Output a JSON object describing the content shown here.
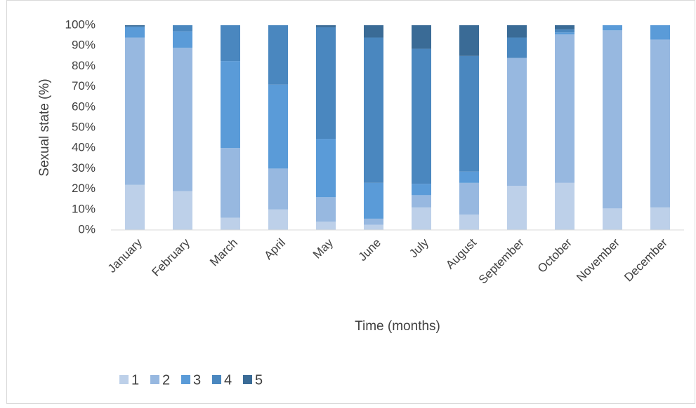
{
  "chart_data": {
    "type": "stacked_bar",
    "x_label": "Time (months)",
    "y_label": "Sexual state (%)",
    "categories": [
      "January",
      "February",
      "March",
      "April",
      "May",
      "June",
      "July",
      "August",
      "September",
      "October",
      "November",
      "December"
    ],
    "series": [
      {
        "name": "1",
        "color": "#bdd0e9",
        "values": [
          22,
          19,
          6,
          10,
          4,
          2.5,
          11,
          7.5,
          21.5,
          23,
          10.5,
          11
        ]
      },
      {
        "name": "2",
        "color": "#97b8e0",
        "values": [
          72,
          70,
          34,
          20,
          12,
          3,
          6,
          15.5,
          62.5,
          72.5,
          87,
          82
        ]
      },
      {
        "name": "3",
        "color": "#5a9bd8",
        "values": [
          5,
          8,
          42.5,
          41,
          28.5,
          17.5,
          5.5,
          5.5,
          0,
          1,
          2.5,
          7
        ]
      },
      {
        "name": "4",
        "color": "#4a87bf",
        "values": [
          0.5,
          3,
          17.5,
          29,
          54.5,
          71,
          66,
          56.5,
          10,
          1.5,
          0,
          0
        ]
      },
      {
        "name": "5",
        "color": "#3a6b96",
        "values": [
          0.5,
          0,
          0,
          0,
          1,
          6,
          11.5,
          15,
          6,
          2,
          0,
          0
        ]
      }
    ],
    "ylim": [
      0,
      100
    ],
    "yticks": [
      {
        "value": 0,
        "label": "0%"
      },
      {
        "value": 10,
        "label": "10%"
      },
      {
        "value": 20,
        "label": "20%"
      },
      {
        "value": 30,
        "label": "30%"
      },
      {
        "value": 40,
        "label": "40%"
      },
      {
        "value": 50,
        "label": "50%"
      },
      {
        "value": 60,
        "label": "60%"
      },
      {
        "value": 70,
        "label": "70%"
      },
      {
        "value": 80,
        "label": "80%"
      },
      {
        "value": 90,
        "label": "90%"
      },
      {
        "value": 100,
        "label": "100%"
      }
    ],
    "grid": false,
    "legend": "bottom"
  }
}
